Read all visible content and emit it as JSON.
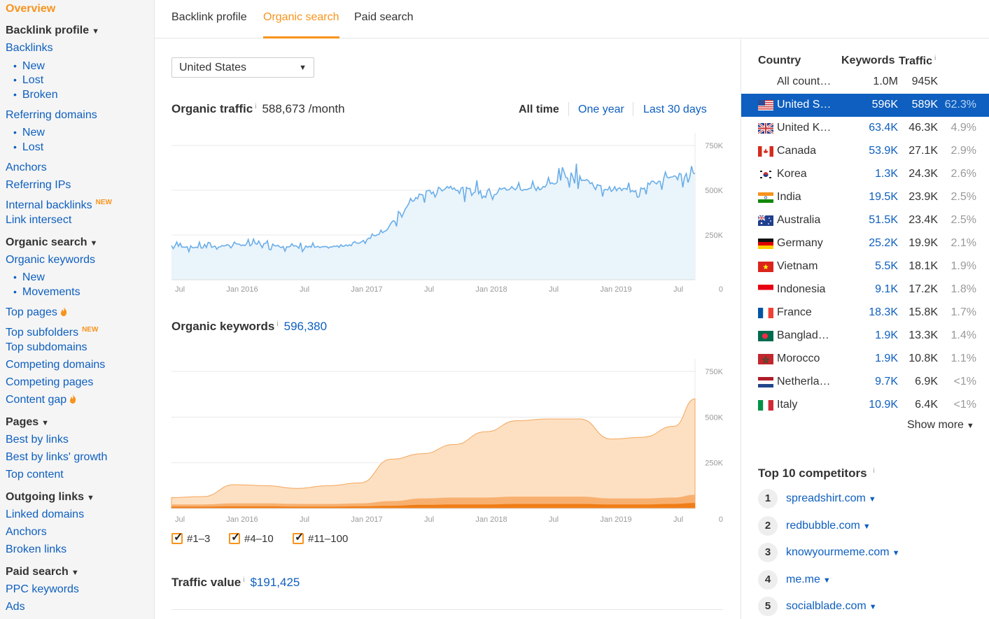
{
  "sidebar": {
    "overview": "Overview",
    "backlink_profile": "Backlink profile",
    "backlinks": "Backlinks",
    "backlinks_new": "New",
    "backlinks_lost": "Lost",
    "backlinks_broken": "Broken",
    "referring_domains": "Referring domains",
    "rd_new": "New",
    "rd_lost": "Lost",
    "anchors": "Anchors",
    "referring_ips": "Referring IPs",
    "internal_backlinks": "Internal backlinks",
    "new_badge": "NEW",
    "link_intersect": "Link intersect",
    "organic_search": "Organic search",
    "organic_keywords": "Organic keywords",
    "ok_new": "New",
    "ok_movements": "Movements",
    "top_pages": "Top pages",
    "top_subfolders": "Top subfolders",
    "top_subdomains": "Top subdomains",
    "competing_domains": "Competing domains",
    "competing_pages": "Competing pages",
    "content_gap": "Content gap",
    "pages": "Pages",
    "best_by_links": "Best by links",
    "best_by_links_growth": "Best by links' growth",
    "top_content": "Top content",
    "outgoing_links": "Outgoing links",
    "linked_domains": "Linked domains",
    "out_anchors": "Anchors",
    "broken_links": "Broken links",
    "paid_search": "Paid search",
    "ppc_keywords": "PPC keywords",
    "ads": "Ads"
  },
  "tabs": [
    "Backlink profile",
    "Organic search",
    "Paid search"
  ],
  "country_select": "United States",
  "organic_traffic": {
    "title": "Organic traffic",
    "info": "i",
    "value": "588,673 /month",
    "ranges": [
      "All time",
      "One year",
      "Last 30 days"
    ]
  },
  "organic_keywords": {
    "title": "Organic keywords",
    "info": "i",
    "value": "596,380"
  },
  "traffic_value": {
    "title": "Traffic value",
    "info": "i",
    "value": "$191,425"
  },
  "legend": [
    "#1–3",
    "#4–10",
    "#11–100"
  ],
  "colors": {
    "accent": "#f7941d",
    "link": "#0e5fbf",
    "traffic_line": "#6aaee8",
    "traffic_fill": "#eaf4fb",
    "kw_light": "#fde0c2",
    "kw_mid": "#f8b070",
    "kw_dark": "#f07d16"
  },
  "chart_data": [
    {
      "type": "line",
      "title": "Organic traffic",
      "x_ticks": [
        "Jul",
        "Jan 2016",
        "Jul",
        "Jan 2017",
        "Jul",
        "Jan 2018",
        "Jul",
        "Jan 2019",
        "Jul"
      ],
      "y_ticks": [
        "750K",
        "500K",
        "250K",
        "0"
      ],
      "ylim": [
        0,
        750000
      ],
      "x": [
        "2015-07",
        "2015-10",
        "2016-01",
        "2016-04",
        "2016-07",
        "2016-10",
        "2017-01",
        "2017-04",
        "2017-07",
        "2017-10",
        "2018-01",
        "2018-04",
        "2018-07",
        "2018-10",
        "2019-01",
        "2019-04",
        "2019-07",
        "2019-09"
      ],
      "series": [
        {
          "values": [
            190000,
            180000,
            195000,
            200000,
            185000,
            180000,
            200000,
            280000,
            470000,
            520000,
            490000,
            510000,
            510000,
            590000,
            510000,
            500000,
            560000,
            590000
          ]
        }
      ]
    },
    {
      "type": "area",
      "title": "Organic keywords",
      "x_ticks": [
        "Jul",
        "Jan 2016",
        "Jul",
        "Jan 2017",
        "Jul",
        "Jan 2018",
        "Jul",
        "Jan 2019",
        "Jul"
      ],
      "y_ticks": [
        "750K",
        "500K",
        "250K",
        "0"
      ],
      "ylim": [
        0,
        750000
      ],
      "x": [
        "2015-07",
        "2015-10",
        "2016-01",
        "2016-04",
        "2016-07",
        "2016-10",
        "2017-01",
        "2017-04",
        "2017-07",
        "2017-10",
        "2018-01",
        "2018-04",
        "2018-07",
        "2018-10",
        "2019-01",
        "2019-04",
        "2019-07",
        "2019-09"
      ],
      "series": [
        {
          "name": "#1–3",
          "values": [
            10000,
            10000,
            12000,
            12000,
            10000,
            10000,
            12000,
            15000,
            20000,
            22000,
            22000,
            25000,
            25000,
            25000,
            22000,
            22000,
            25000,
            30000
          ]
        },
        {
          "name": "#4–10",
          "values": [
            22000,
            22000,
            28000,
            28000,
            25000,
            25000,
            28000,
            40000,
            55000,
            60000,
            60000,
            65000,
            65000,
            65000,
            55000,
            55000,
            60000,
            75000
          ]
        },
        {
          "name": "#11–100",
          "values": [
            60000,
            65000,
            130000,
            125000,
            110000,
            125000,
            140000,
            270000,
            300000,
            350000,
            420000,
            480000,
            490000,
            490000,
            380000,
            390000,
            450000,
            600000
          ]
        }
      ]
    }
  ],
  "country_table": {
    "headers": [
      "Country",
      "Keywords",
      "Traffic"
    ],
    "info": "i",
    "all": {
      "name": "All count…",
      "keywords": "1.0M",
      "traffic": "945K"
    },
    "rows": [
      {
        "name": "United S…",
        "keywords": "596K",
        "traffic": "589K",
        "pct": "62.3%",
        "flag": "us-flag-icon"
      },
      {
        "name": "United K…",
        "keywords": "63.4K",
        "traffic": "46.3K",
        "pct": "4.9%",
        "flag": "uk-flag-icon"
      },
      {
        "name": "Canada",
        "keywords": "53.9K",
        "traffic": "27.1K",
        "pct": "2.9%",
        "flag": "canada-flag-icon"
      },
      {
        "name": "Korea",
        "keywords": "1.3K",
        "traffic": "24.3K",
        "pct": "2.6%",
        "flag": "korea-flag-icon"
      },
      {
        "name": "India",
        "keywords": "19.5K",
        "traffic": "23.9K",
        "pct": "2.5%",
        "flag": "india-flag-icon"
      },
      {
        "name": "Australia",
        "keywords": "51.5K",
        "traffic": "23.4K",
        "pct": "2.5%",
        "flag": "australia-flag-icon"
      },
      {
        "name": "Germany",
        "keywords": "25.2K",
        "traffic": "19.9K",
        "pct": "2.1%",
        "flag": "germany-flag-icon"
      },
      {
        "name": "Vietnam",
        "keywords": "5.5K",
        "traffic": "18.1K",
        "pct": "1.9%",
        "flag": "vietnam-flag-icon"
      },
      {
        "name": "Indonesia",
        "keywords": "9.1K",
        "traffic": "17.2K",
        "pct": "1.8%",
        "flag": "indonesia-flag-icon"
      },
      {
        "name": "France",
        "keywords": "18.3K",
        "traffic": "15.8K",
        "pct": "1.7%",
        "flag": "france-flag-icon"
      },
      {
        "name": "Banglad…",
        "keywords": "1.9K",
        "traffic": "13.3K",
        "pct": "1.4%",
        "flag": "bangladesh-flag-icon"
      },
      {
        "name": "Morocco",
        "keywords": "1.9K",
        "traffic": "10.8K",
        "pct": "1.1%",
        "flag": "morocco-flag-icon"
      },
      {
        "name": "Netherla…",
        "keywords": "9.7K",
        "traffic": "6.9K",
        "pct": "<1%",
        "flag": "netherlands-flag-icon"
      },
      {
        "name": "Italy",
        "keywords": "10.9K",
        "traffic": "6.4K",
        "pct": "<1%",
        "flag": "italy-flag-icon"
      }
    ],
    "show_more": "Show more"
  },
  "competitors": {
    "title": "Top 10 competitors",
    "info": "i",
    "items": [
      {
        "num": "1",
        "domain": "spreadshirt.com"
      },
      {
        "num": "2",
        "domain": "redbubble.com"
      },
      {
        "num": "3",
        "domain": "knowyourmeme.com"
      },
      {
        "num": "4",
        "domain": "me.me"
      },
      {
        "num": "5",
        "domain": "socialblade.com"
      }
    ]
  }
}
